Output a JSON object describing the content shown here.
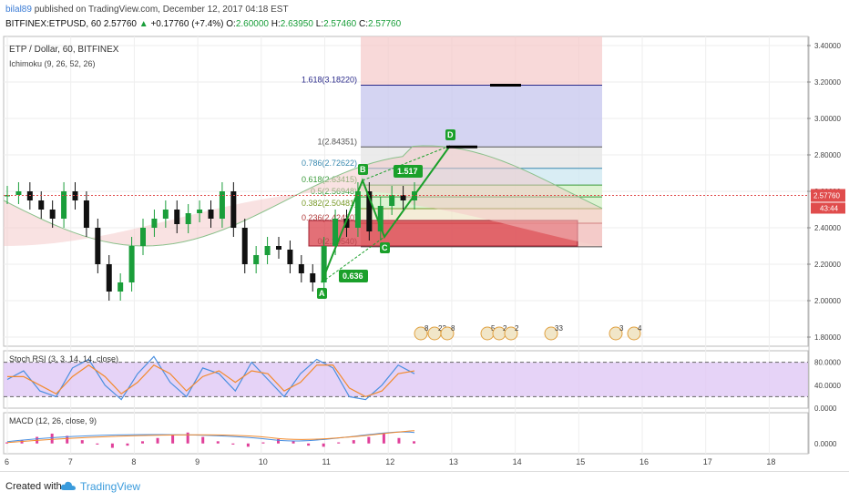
{
  "header": {
    "user": "bilal89",
    "published": "published on TradingView.com, December 12, 2017 04:18 EST",
    "symbol_line": "BITFINEX:ETPUSD, 60",
    "last": "2.57760",
    "change_arrow": "▲",
    "change": "+0.17760 (+7.4%)",
    "o_label": "O:",
    "o": "2.60000",
    "h_label": "H:",
    "h": "2.63950",
    "l_label": "L:",
    "l": "2.57460",
    "c_label": "C:",
    "c": "2.57760"
  },
  "colors": {
    "up": "#1a9e3a",
    "down": "#111111",
    "harmonic": "#1aa02a",
    "price_tag": "#e04c4c",
    "rsi_band": "#e0c8f5",
    "stoch_k": "#4a8fe0",
    "stoch_d": "#f28a2c",
    "macd_hist": "#e0409a"
  },
  "chart_data": [
    {
      "type": "candlestick",
      "panel": "main",
      "title": "ETP / Dollar, 60, BITFINEX",
      "indicator": "Ichimoku (9, 26, 52, 26)",
      "ylim": [
        1.75,
        3.45
      ],
      "y_ticks": [
        "3.40000",
        "3.20000",
        "3.00000",
        "2.80000",
        "2.60000",
        "2.40000",
        "2.20000",
        "2.00000",
        "1.80000"
      ],
      "x_ticks": [
        "6",
        "7",
        "8",
        "9",
        "10",
        "11",
        "12",
        "13",
        "14",
        "15",
        "16",
        "17",
        "18"
      ],
      "last_price_tag": "2.57760",
      "countdown_tag": "43:44",
      "close_series": [
        2.58,
        2.6,
        2.55,
        2.5,
        2.45,
        2.6,
        2.55,
        2.4,
        2.2,
        2.05,
        2.1,
        2.3,
        2.4,
        2.45,
        2.5,
        2.42,
        2.48,
        2.5,
        2.45,
        2.6,
        2.4,
        2.2,
        2.25,
        2.3,
        2.28,
        2.2,
        2.15,
        2.1,
        2.3,
        2.45,
        2.4,
        2.6,
        2.38,
        2.52,
        2.58,
        2.55,
        2.6
      ],
      "fib_levels": [
        {
          "label": "1.618(3.18220)",
          "value": 3.1822
        },
        {
          "label": "1(2.84351)",
          "value": 2.84351
        },
        {
          "label": "0.786(2.72622)",
          "value": 2.72622
        },
        {
          "label": "0.618(2.63415)",
          "value": 2.63415
        },
        {
          "label": "0.5(2.56948)",
          "value": 2.56948
        },
        {
          "label": "0.382(2.50481)",
          "value": 2.50481
        },
        {
          "label": "0.236(2.42480)",
          "value": 2.4248
        },
        {
          "label": "0(2.29540)",
          "value": 2.2954
        }
      ],
      "harmonic_points": [
        {
          "label": "A",
          "value": 2.1
        },
        {
          "label": "B",
          "value": 2.66
        },
        {
          "label": "C",
          "value": 2.35
        },
        {
          "label": "D",
          "value": 2.85
        }
      ],
      "harmonic_ratios": [
        "0.636",
        "1.517"
      ],
      "event_markers": [
        "8",
        "22",
        "8",
        "5",
        "2",
        "2",
        "33",
        "3",
        "4"
      ]
    },
    {
      "type": "line",
      "panel": "stoch",
      "title": "Stoch RSI (3, 3, 14, 14, close)",
      "ylim": [
        0,
        100
      ],
      "y_ticks": [
        "80.0000",
        "40.0000",
        "0.0000"
      ],
      "band": [
        20,
        80
      ],
      "series": [
        {
          "name": "K",
          "values": [
            50,
            65,
            30,
            20,
            70,
            85,
            40,
            15,
            60,
            90,
            45,
            20,
            70,
            60,
            30,
            80,
            50,
            20,
            60,
            85,
            70,
            20,
            15,
            40,
            75,
            60
          ]
        },
        {
          "name": "D",
          "values": [
            55,
            55,
            40,
            25,
            55,
            75,
            55,
            25,
            45,
            75,
            60,
            30,
            55,
            65,
            45,
            65,
            60,
            30,
            45,
            75,
            75,
            35,
            20,
            30,
            60,
            65
          ]
        }
      ]
    },
    {
      "type": "area",
      "panel": "macd",
      "title": "MACD (12, 26, close, 9)",
      "y_ticks": [
        "0.0000"
      ],
      "histogram": [
        0.1,
        0.3,
        0.6,
        0.9,
        0.7,
        0.3,
        -0.1,
        -0.4,
        -0.2,
        0.2,
        0.5,
        0.8,
        1,
        0.6,
        0.2,
        -0.1,
        -0.3,
        0.1,
        0.4,
        0.2,
        -0.2,
        -0.3,
        0.1,
        0.3,
        0.6,
        0.9,
        0.5,
        0.2
      ]
    }
  ],
  "footer": {
    "created_with": "Created with",
    "brand": "TradingView"
  }
}
